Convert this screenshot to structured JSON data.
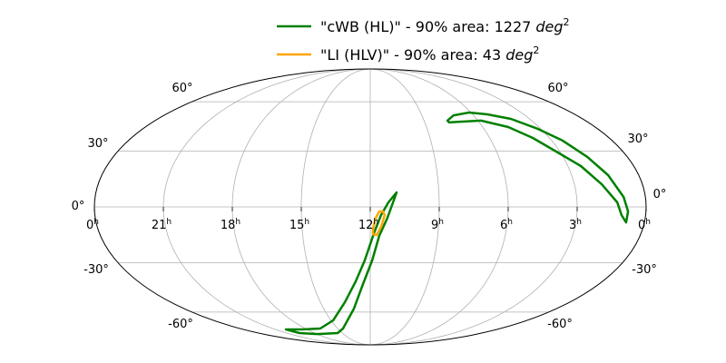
{
  "chart_data": {
    "type": "line",
    "projection": "mollweide",
    "grid": true,
    "legend_placement": "top-center",
    "ra_tick_labels": [
      "0",
      "21",
      "18",
      "15",
      "12",
      "9",
      "6",
      "3",
      "0"
    ],
    "ra_tick_values_hours": [
      24,
      21,
      18,
      15,
      12,
      9,
      6,
      3,
      0
    ],
    "ra_unit": "h",
    "dec_tick_labels_left": [
      "60°",
      "30°",
      "0°",
      "-30°",
      "-60°"
    ],
    "dec_tick_labels_right": [
      "60°",
      "30°",
      "0°",
      "-30°",
      "-60°"
    ],
    "dec_tick_values_deg": [
      60,
      30,
      0,
      -30,
      -60
    ],
    "series": [
      {
        "name": "\"cWB (HL)\" - 90% area: 1227 deg2",
        "legend_text": "\"cWB (HL)\" - 90% area: 1227 ",
        "legend_unit": "deg",
        "legend_exp": "2",
        "color": "#008000",
        "contours": [
          [
            [
              7.7,
              47.8
            ],
            [
              7.15,
              51.1
            ],
            [
              6.1,
              52.9
            ],
            [
              5.14,
              51.7
            ],
            [
              4.05,
              48.9
            ],
            [
              3.15,
              42.8
            ],
            [
              2.46,
              36.0
            ],
            [
              1.87,
              26.8
            ],
            [
              1.37,
              16.9
            ],
            [
              0.95,
              5.25
            ],
            [
              0.78,
              -2.4
            ],
            [
              0.8,
              -8.2
            ],
            [
              1.05,
              -4.3
            ],
            [
              1.25,
              2.4
            ],
            [
              1.79,
              12.0
            ],
            [
              2.41,
              21.8
            ],
            [
              3.17,
              29.8
            ],
            [
              3.84,
              37.5
            ],
            [
              4.64,
              43.9
            ],
            [
              5.83,
              47.8
            ],
            [
              6.88,
              47.2
            ],
            [
              7.66,
              46.7
            ],
            [
              7.7,
              47.8
            ]
          ],
          [
            [
              10.85,
              7.66
            ],
            [
              11.01,
              2.4
            ],
            [
              11.25,
              -5.8
            ],
            [
              11.6,
              -15.4
            ],
            [
              11.91,
              -28.8
            ],
            [
              12.38,
              -42.3
            ],
            [
              13.05,
              -57.7
            ],
            [
              14.51,
              -72.2
            ],
            [
              15.5,
              -76.0
            ],
            [
              17.9,
              -76.9
            ],
            [
              19.6,
              -76.0
            ],
            [
              19.98,
              -72.9
            ],
            [
              18.44,
              -72.9
            ],
            [
              16.61,
              -72.2
            ],
            [
              14.84,
              -65.9
            ],
            [
              13.53,
              -53.5
            ],
            [
              12.75,
              -40.7
            ],
            [
              12.26,
              -28.8
            ],
            [
              11.84,
              -14.0
            ],
            [
              11.53,
              -4.3
            ],
            [
              11.21,
              2.4
            ],
            [
              10.85,
              7.66
            ]
          ]
        ]
      },
      {
        "name": "\"LI (HLV)\" - 90% area: 43 deg2",
        "legend_text": "\"LI (HLV)\" - 90% area: 43 ",
        "legend_unit": "deg",
        "legend_exp": "2",
        "color": "#FFA500",
        "contours": [
          [
            [
              11.45,
              -2.4
            ],
            [
              11.37,
              -4.3
            ],
            [
              11.52,
              -10.6
            ],
            [
              11.72,
              -15.0
            ],
            [
              11.88,
              -14.5
            ],
            [
              11.88,
              -11.6
            ],
            [
              11.76,
              -5.8
            ],
            [
              11.61,
              -2.4
            ],
            [
              11.45,
              -2.4
            ]
          ]
        ]
      }
    ]
  }
}
